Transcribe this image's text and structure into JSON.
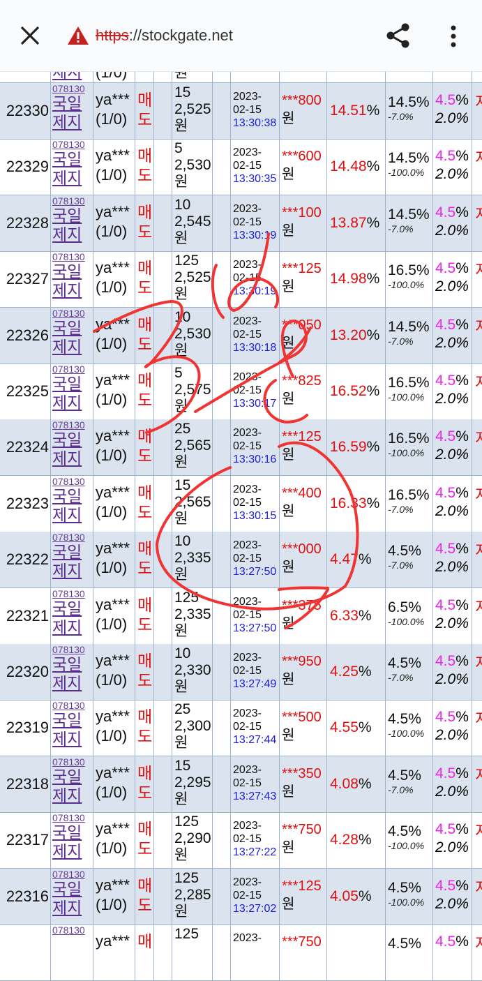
{
  "browser": {
    "url_scheme": "https",
    "url_rest": "://stockgate.net"
  },
  "accent_colors": {
    "sell": "#e01010",
    "time": "#1a1ad8",
    "fee": "#ee22ee",
    "row_shade": "#dbe4ee"
  },
  "top_partial": {
    "stock_name": "제지",
    "user": "(1/0)",
    "won": "원"
  },
  "rows": [
    {
      "id": "22330",
      "code": "078130",
      "name1": "국일",
      "name2": "제지",
      "user": "ya***",
      "count": "(1/0)",
      "side1": "매",
      "side2": "도",
      "qty": "15",
      "price": "2,525",
      "won": "원",
      "date1": "2023-",
      "date2": "02-15",
      "time": "13:30:38",
      "amount": "***800",
      "pct": "14.51",
      "rate": "14.5%",
      "delta": "-7.0%",
      "fee1": "4.5",
      "fee2": "2.0%",
      "last": "지"
    },
    {
      "id": "22329",
      "code": "078130",
      "name1": "국일",
      "name2": "제지",
      "user": "ya***",
      "count": "(1/0)",
      "side1": "매",
      "side2": "도",
      "qty": "5",
      "price": "2,530",
      "won": "원",
      "date1": "2023-",
      "date2": "02-15",
      "time": "13:30:35",
      "amount": "***600",
      "pct": "14.48",
      "rate": "14.5%",
      "delta": "-100.0%",
      "fee1": "4.5",
      "fee2": "2.0%",
      "last": "지"
    },
    {
      "id": "22328",
      "code": "078130",
      "name1": "국일",
      "name2": "제지",
      "user": "ya***",
      "count": "(1/0)",
      "side1": "매",
      "side2": "도",
      "qty": "10",
      "price": "2,545",
      "won": "원",
      "date1": "2023-",
      "date2": "02-15",
      "time": "13:30:19",
      "amount": "***100",
      "pct": "13.87",
      "rate": "14.5%",
      "delta": "-7.0%",
      "fee1": "4.5",
      "fee2": "2.0%",
      "last": "지"
    },
    {
      "id": "22327",
      "code": "078130",
      "name1": "국일",
      "name2": "제지",
      "user": "ya***",
      "count": "(1/0)",
      "side1": "매",
      "side2": "도",
      "qty": "125",
      "price": "2,525",
      "won": "원",
      "date1": "2023-",
      "date2": "02-15",
      "time": "13:30:19",
      "amount": "***125",
      "pct": "14.98",
      "rate": "16.5%",
      "delta": "-100.0%",
      "fee1": "4.5",
      "fee2": "2.0%",
      "last": "지"
    },
    {
      "id": "22326",
      "code": "078130",
      "name1": "국일",
      "name2": "제지",
      "user": "ya***",
      "count": "(1/0)",
      "side1": "매",
      "side2": "도",
      "qty": "10",
      "price": "2,530",
      "won": "원",
      "date1": "2023-",
      "date2": "02-15",
      "time": "13:30:18",
      "amount": "***050",
      "pct": "13.20",
      "rate": "14.5%",
      "delta": "-7.0%",
      "fee1": "4.5",
      "fee2": "2.0%",
      "last": "지"
    },
    {
      "id": "22325",
      "code": "078130",
      "name1": "국일",
      "name2": "제지",
      "user": "ya***",
      "count": "(1/0)",
      "side1": "매",
      "side2": "도",
      "qty": "5",
      "price": "2,575",
      "won": "원",
      "date1": "2023-",
      "date2": "02-15",
      "time": "13:30:17",
      "amount": "***825",
      "pct": "16.52",
      "rate": "16.5%",
      "delta": "-100.0%",
      "fee1": "4.5",
      "fee2": "2.0%",
      "last": "지"
    },
    {
      "id": "22324",
      "code": "078130",
      "name1": "국일",
      "name2": "제지",
      "user": "ya***",
      "count": "(1/0)",
      "side1": "매",
      "side2": "도",
      "qty": "25",
      "price": "2,565",
      "won": "원",
      "date1": "2023-",
      "date2": "02-15",
      "time": "13:30:16",
      "amount": "***125",
      "pct": "16.59",
      "rate": "16.5%",
      "delta": "-100.0%",
      "fee1": "4.5",
      "fee2": "2.0%",
      "last": "지"
    },
    {
      "id": "22323",
      "code": "078130",
      "name1": "국일",
      "name2": "제지",
      "user": "ya***",
      "count": "(1/0)",
      "side1": "매",
      "side2": "도",
      "qty": "15",
      "price": "2,565",
      "won": "원",
      "date1": "2023-",
      "date2": "02-15",
      "time": "13:30:15",
      "amount": "***400",
      "pct": "16.33",
      "rate": "16.5%",
      "delta": "-7.0%",
      "fee1": "4.5",
      "fee2": "2.0%",
      "last": "지"
    },
    {
      "id": "22322",
      "code": "078130",
      "name1": "국일",
      "name2": "제지",
      "user": "ya***",
      "count": "(1/0)",
      "side1": "매",
      "side2": "도",
      "qty": "10",
      "price": "2,335",
      "won": "원",
      "date1": "2023-",
      "date2": "02-15",
      "time": "13:27:50",
      "amount": "***000",
      "pct": "4.47",
      "rate": "4.5%",
      "delta": "-7.0%",
      "fee1": "4.5",
      "fee2": "2.0%",
      "last": "지"
    },
    {
      "id": "22321",
      "code": "078130",
      "name1": "국일",
      "name2": "제지",
      "user": "ya***",
      "count": "(1/0)",
      "side1": "매",
      "side2": "도",
      "qty": "125",
      "price": "2,335",
      "won": "원",
      "date1": "2023-",
      "date2": "02-15",
      "time": "13:27:50",
      "amount": "***375",
      "pct": "6.33",
      "rate": "6.5%",
      "delta": "-100.0%",
      "fee1": "4.5",
      "fee2": "2.0%",
      "last": "지"
    },
    {
      "id": "22320",
      "code": "078130",
      "name1": "국일",
      "name2": "제지",
      "user": "ya***",
      "count": "(1/0)",
      "side1": "매",
      "side2": "도",
      "qty": "10",
      "price": "2,330",
      "won": "원",
      "date1": "2023-",
      "date2": "02-15",
      "time": "13:27:49",
      "amount": "***950",
      "pct": "4.25",
      "rate": "4.5%",
      "delta": "-7.0%",
      "fee1": "4.5",
      "fee2": "2.0%",
      "last": "지"
    },
    {
      "id": "22319",
      "code": "078130",
      "name1": "국일",
      "name2": "제지",
      "user": "ya***",
      "count": "(1/0)",
      "side1": "매",
      "side2": "도",
      "qty": "25",
      "price": "2,300",
      "won": "원",
      "date1": "2023-",
      "date2": "02-15",
      "time": "13:27:44",
      "amount": "***500",
      "pct": "4.55",
      "rate": "4.5%",
      "delta": "-100.0%",
      "fee1": "4.5",
      "fee2": "2.0%",
      "last": "지"
    },
    {
      "id": "22318",
      "code": "078130",
      "name1": "국일",
      "name2": "제지",
      "user": "ya***",
      "count": "(1/0)",
      "side1": "매",
      "side2": "도",
      "qty": "15",
      "price": "2,295",
      "won": "원",
      "date1": "2023-",
      "date2": "02-15",
      "time": "13:27:43",
      "amount": "***350",
      "pct": "4.08",
      "rate": "4.5%",
      "delta": "-7.0%",
      "fee1": "4.5",
      "fee2": "2.0%",
      "last": "지"
    },
    {
      "id": "22317",
      "code": "078130",
      "name1": "국일",
      "name2": "제지",
      "user": "ya***",
      "count": "(1/0)",
      "side1": "매",
      "side2": "도",
      "qty": "125",
      "price": "2,290",
      "won": "원",
      "date1": "2023-",
      "date2": "02-15",
      "time": "13:27:22",
      "amount": "***750",
      "pct": "4.28",
      "rate": "4.5%",
      "delta": "-100.0%",
      "fee1": "4.5",
      "fee2": "2.0%",
      "last": "지"
    },
    {
      "id": "22316",
      "code": "078130",
      "name1": "국일",
      "name2": "제지",
      "user": "ya***",
      "count": "(1/0)",
      "side1": "매",
      "side2": "도",
      "qty": "125",
      "price": "2,285",
      "won": "원",
      "date1": "2023-",
      "date2": "02-15",
      "time": "13:27:02",
      "amount": "***125",
      "pct": "4.05",
      "rate": "4.5%",
      "delta": "-100.0%",
      "fee1": "4.5",
      "fee2": "2.0%",
      "last": "지"
    },
    {
      "id": "",
      "code": "078130",
      "name1": "",
      "name2": "",
      "user": "ya***",
      "count": "",
      "side1": "매",
      "side2": "",
      "qty": "125",
      "price": "",
      "won": "",
      "date1": "2023-",
      "date2": "",
      "time": "",
      "amount": "***750",
      "pct": "",
      "rate": "4.5%",
      "delta": "",
      "fee1": "4.5",
      "fee2": "",
      "last": "지"
    }
  ]
}
